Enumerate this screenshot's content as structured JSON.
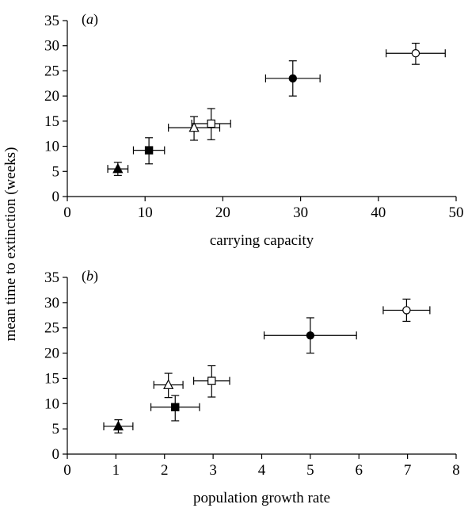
{
  "ylabel": "mean time to extinction (weeks)",
  "chart_data": [
    {
      "type": "scatter",
      "panel_label": "(a)",
      "xlabel": "carrying capacity",
      "ylabel": "mean time to extinction (weeks)",
      "xlim": [
        0,
        50
      ],
      "ylim": [
        0,
        35
      ],
      "xticks": [
        "0",
        "10",
        "20",
        "30",
        "40",
        "50"
      ],
      "yticks": [
        "0",
        "5",
        "10",
        "15",
        "20",
        "25",
        "30",
        "35"
      ],
      "points": [
        {
          "marker": "filled-triangle",
          "x": 6.5,
          "y": 5.5,
          "xerr": 1.3,
          "yerr_low": 1.3,
          "yerr_high": 1.3
        },
        {
          "marker": "filled-square",
          "x": 10.5,
          "y": 9.2,
          "xerr": 2.0,
          "yerr_low": 2.7,
          "yerr_high": 2.5
        },
        {
          "marker": "open-triangle",
          "x": 16.3,
          "y": 13.7,
          "xerr": 3.3,
          "yerr_low": 2.5,
          "yerr_high": 2.2
        },
        {
          "marker": "open-square",
          "x": 18.5,
          "y": 14.5,
          "xerr": 2.5,
          "yerr_low": 3.2,
          "yerr_high": 3.0
        },
        {
          "marker": "filled-circle",
          "x": 29.0,
          "y": 23.5,
          "xerr": 3.5,
          "yerr_low": 3.5,
          "yerr_high": 3.5
        },
        {
          "marker": "open-circle",
          "x": 44.8,
          "y": 28.5,
          "xerr": 3.8,
          "yerr_low": 2.2,
          "yerr_high": 2.0
        }
      ]
    },
    {
      "type": "scatter",
      "panel_label": "(b)",
      "xlabel": "population growth rate",
      "ylabel": "mean time to extinction (weeks)",
      "xlim": [
        0,
        8
      ],
      "ylim": [
        0,
        35
      ],
      "xticks": [
        "0",
        "1",
        "2",
        "3",
        "4",
        "5",
        "6",
        "7",
        "8"
      ],
      "yticks": [
        "0",
        "5",
        "10",
        "15",
        "20",
        "25",
        "30",
        "35"
      ],
      "points": [
        {
          "marker": "filled-triangle",
          "x": 1.05,
          "y": 5.5,
          "xerr": 0.3,
          "yerr_low": 1.3,
          "yerr_high": 1.3
        },
        {
          "marker": "filled-square",
          "x": 2.22,
          "y": 9.3,
          "xerr": 0.5,
          "yerr_low": 2.7,
          "yerr_high": 2.3
        },
        {
          "marker": "open-triangle",
          "x": 2.08,
          "y": 13.7,
          "xerr": 0.3,
          "yerr_low": 2.5,
          "yerr_high": 2.3
        },
        {
          "marker": "open-square",
          "x": 2.97,
          "y": 14.5,
          "xerr": 0.37,
          "yerr_low": 3.2,
          "yerr_high": 3.0
        },
        {
          "marker": "filled-circle",
          "x": 5.0,
          "y": 23.5,
          "xerr": 0.95,
          "yerr_low": 3.5,
          "yerr_high": 3.5
        },
        {
          "marker": "open-circle",
          "x": 6.98,
          "y": 28.5,
          "xerr": 0.48,
          "yerr_low": 2.2,
          "yerr_high": 2.2
        }
      ]
    }
  ]
}
